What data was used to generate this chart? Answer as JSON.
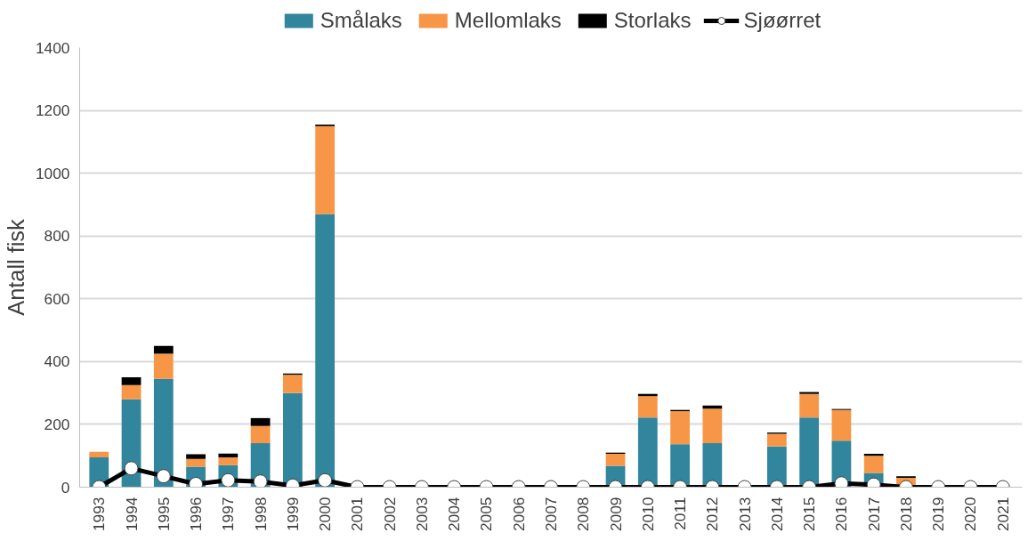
{
  "chart_data": {
    "type": "bar",
    "stacked": true,
    "ylabel": "Antall fisk",
    "ylim": [
      0,
      1400
    ],
    "yticks": [
      0,
      200,
      400,
      600,
      800,
      1000,
      1200,
      1400
    ],
    "grid": "y",
    "legend": "top",
    "categories": [
      "1993",
      "1994",
      "1995",
      "1996",
      "1997",
      "1998",
      "1999",
      "2000",
      "2001",
      "2002",
      "2003",
      "2004",
      "2005",
      "2006",
      "2007",
      "2008",
      "2009",
      "2010",
      "2011",
      "2012",
      "2013",
      "2014",
      "2015",
      "2016",
      "2017",
      "2018",
      "2019",
      "2020",
      "2021"
    ],
    "series": [
      {
        "name": "Smålaks",
        "color": "#31859c",
        "values": [
          95,
          280,
          345,
          65,
          70,
          140,
          300,
          870,
          0,
          0,
          0,
          0,
          0,
          0,
          0,
          0,
          68,
          222,
          137,
          140,
          0,
          130,
          222,
          148,
          45,
          null,
          0,
          0,
          0
        ]
      },
      {
        "name": "Mellomlaks",
        "color": "#f79646",
        "values": [
          18,
          45,
          80,
          25,
          25,
          55,
          58,
          280,
          0,
          0,
          0,
          0,
          0,
          0,
          0,
          0,
          38,
          68,
          105,
          110,
          0,
          40,
          75,
          98,
          55,
          30,
          0,
          0,
          0
        ]
      },
      {
        "name": "Storlaks",
        "color": "#000000",
        "values": [
          0,
          25,
          25,
          15,
          12,
          25,
          4,
          5,
          0,
          0,
          0,
          0,
          0,
          0,
          0,
          0,
          4,
          7,
          4,
          10,
          0,
          4,
          6,
          3,
          6,
          5,
          0,
          0,
          0
        ]
      },
      {
        "name": "Sjøørret",
        "type": "line",
        "color": "#000000",
        "marker": "circle",
        "line_style": "solid",
        "values": [
          0,
          60,
          35,
          10,
          22,
          18,
          5,
          22,
          0,
          0,
          0,
          0,
          0,
          0,
          0,
          0,
          0,
          0,
          0,
          0,
          0,
          0,
          0,
          12,
          8,
          0,
          0,
          0,
          0
        ]
      }
    ]
  }
}
